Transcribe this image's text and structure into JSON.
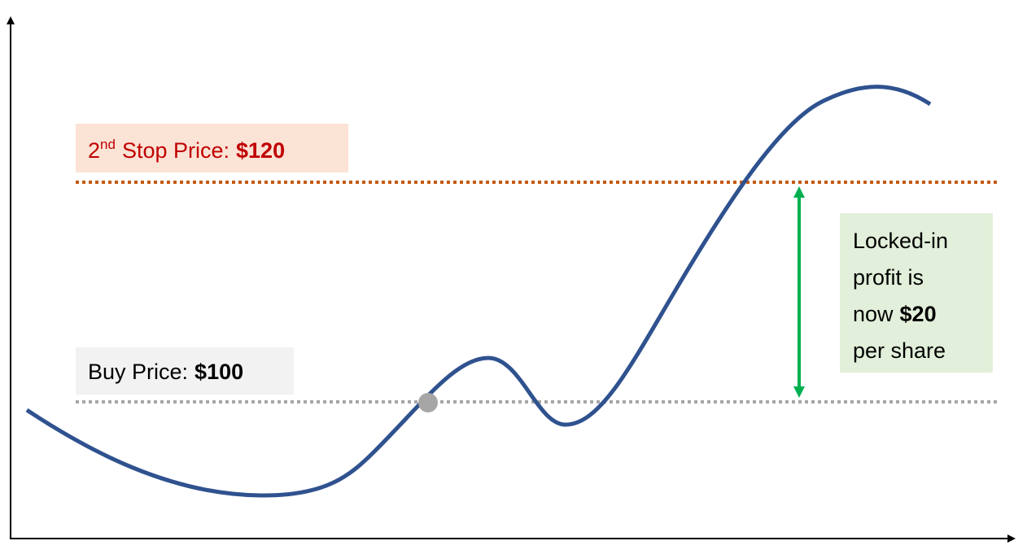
{
  "stop_label": {
    "ordinal": "2",
    "ordinal_suffix": "nd",
    "text": "Stop Price:",
    "value": "$120"
  },
  "buy_label": {
    "text": "Buy Price:",
    "value": "$100"
  },
  "profit_note": {
    "lines": [
      {
        "text": "Locked-in"
      },
      {
        "text": "profit is"
      },
      {
        "text": "now",
        "bold": "$20"
      },
      {
        "text": "per share"
      }
    ]
  }
}
